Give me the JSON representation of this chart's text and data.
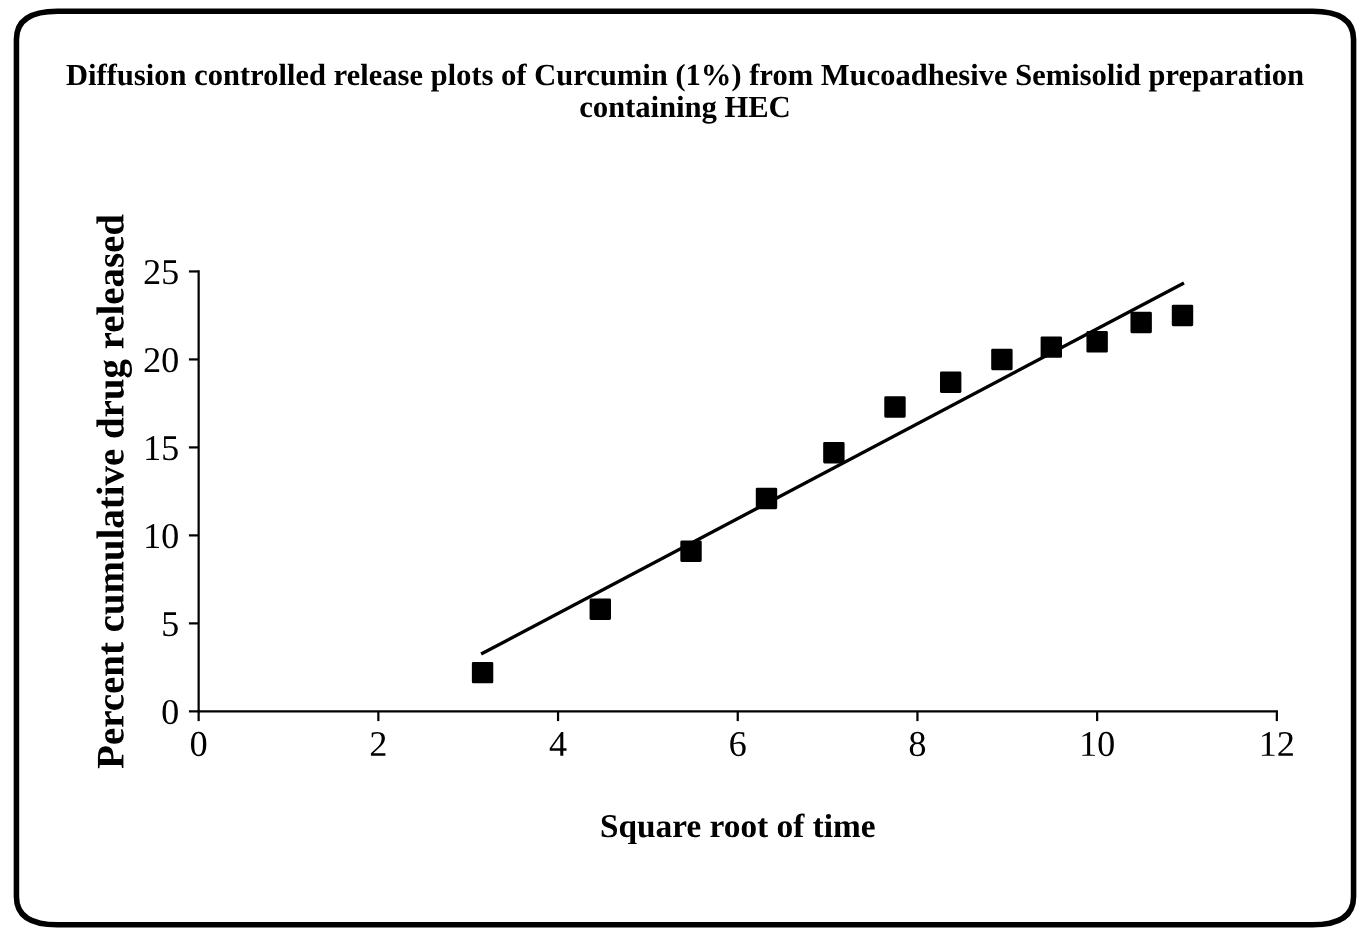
{
  "chart_data": {
    "type": "scatter",
    "title": "Diffusion controlled release plots of Curcumin (1%) from Mucoadhesive Semisolid preparation containing HEC",
    "xlabel": "Square root of time",
    "ylabel": "Percent cumulative drug released",
    "xlim": [
      0,
      12
    ],
    "xticks": [
      0,
      2,
      4,
      6,
      8,
      10,
      12
    ],
    "ylim": [
      0,
      25
    ],
    "yticks": [
      0,
      5,
      10,
      15,
      20,
      25
    ],
    "grid": false,
    "legend": false,
    "marker": "square",
    "series": [
      {
        "color": "#000000",
        "x": [
          3.16,
          4.47,
          5.48,
          6.32,
          7.07,
          7.75,
          8.37,
          8.94,
          9.49,
          10.0,
          10.49,
          10.95
        ],
        "values": [
          2.2,
          5.8,
          9.1,
          12.1,
          14.7,
          17.3,
          18.7,
          20.0,
          20.7,
          21.0,
          22.1,
          22.5
        ]
      },
      {
        "type": "line",
        "color": "#000000",
        "line_style": "solid",
        "marker": "none",
        "x": [
          3.16,
          10.95
        ],
        "values": [
          3.3,
          24.3
        ]
      }
    ]
  }
}
